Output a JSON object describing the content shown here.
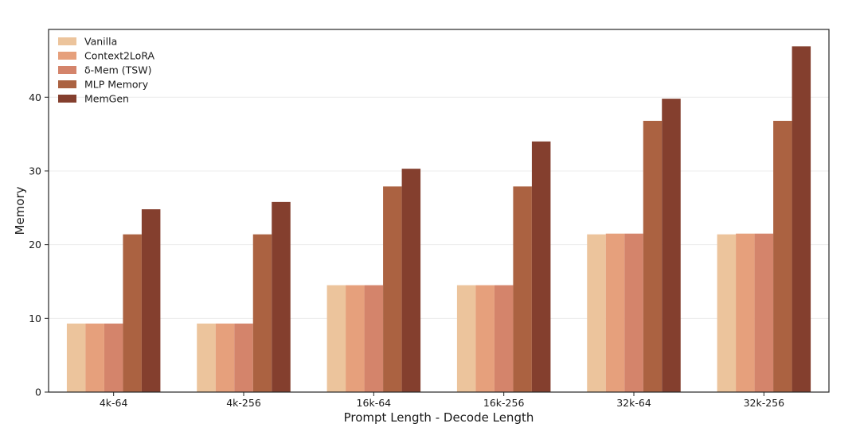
{
  "chart_data": {
    "type": "bar",
    "title": "",
    "xlabel": "Prompt Length - Decode Length",
    "ylabel": "Memory",
    "categories": [
      "4k-64",
      "4k-256",
      "16k-64",
      "16k-256",
      "32k-64",
      "32k-256"
    ],
    "series": [
      {
        "name": "Vanilla",
        "color": "#ecc49c",
        "values": [
          9.3,
          9.3,
          14.5,
          14.5,
          21.4,
          21.4
        ]
      },
      {
        "name": "Context2LoRA",
        "color": "#e6a07c",
        "values": [
          9.3,
          9.3,
          14.5,
          14.5,
          21.5,
          21.5
        ]
      },
      {
        "name": "δ-Mem (TSW)",
        "color": "#d4846b",
        "values": [
          9.3,
          9.3,
          14.5,
          14.5,
          21.5,
          21.5
        ]
      },
      {
        "name": "MLP Memory",
        "color": "#ab6241",
        "values": [
          21.4,
          21.4,
          27.9,
          27.9,
          36.8,
          36.8
        ]
      },
      {
        "name": "MemGen",
        "color": "#843f2e",
        "values": [
          24.8,
          25.8,
          30.3,
          34.0,
          39.8,
          46.9
        ]
      }
    ],
    "y_ticks": [
      0,
      10,
      20,
      30,
      40
    ],
    "ylim": [
      0,
      49.2
    ],
    "grid": "horizontal",
    "legend": "top-left"
  }
}
